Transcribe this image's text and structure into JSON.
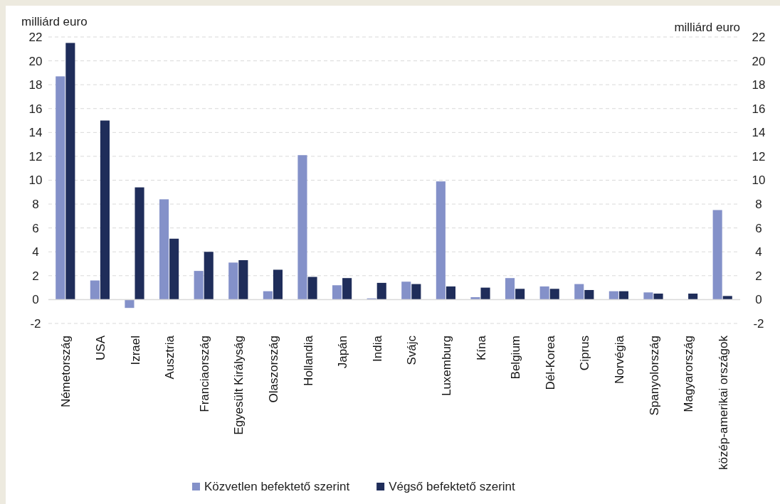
{
  "chart_data": {
    "type": "bar",
    "ylabel": "milliárd euro",
    "y2label": "milliárd euro",
    "categories": [
      "Németország",
      "USA",
      "Izrael",
      "Ausztria",
      "Franciaország",
      "Egyesült Királyság",
      "Olaszország",
      "Hollandia",
      "Japán",
      "India",
      "Svájc",
      "Luxemburg",
      "Kína",
      "Belgium",
      "Dél-Korea",
      "Ciprus",
      "Norvégia",
      "Spanyolország",
      "Magyarország",
      "közép-amerikai országok"
    ],
    "series": [
      {
        "name": "Közvetlen befektető szerint",
        "color": "#8491c9",
        "values": [
          18.7,
          1.6,
          -0.7,
          8.4,
          2.4,
          3.1,
          0.7,
          12.1,
          1.2,
          0.1,
          1.5,
          9.9,
          0.2,
          1.8,
          1.1,
          1.3,
          0.7,
          0.6,
          null,
          7.5
        ]
      },
      {
        "name": "Végső befektető szerint",
        "color": "#1f2d5a",
        "values": [
          21.5,
          15.0,
          9.4,
          5.1,
          4.0,
          3.3,
          2.5,
          1.9,
          1.8,
          1.4,
          1.3,
          1.1,
          1.0,
          0.9,
          0.9,
          0.8,
          0.7,
          0.5,
          0.5,
          0.3
        ]
      }
    ],
    "ylim": [
      -2,
      22
    ],
    "yticks": [
      -2,
      0,
      2,
      4,
      6,
      8,
      10,
      12,
      14,
      16,
      18,
      20,
      22
    ],
    "y2lim": [
      -2,
      22
    ],
    "y2ticks": [
      -2,
      0,
      2,
      4,
      6,
      8,
      10,
      12,
      14,
      16,
      18,
      20,
      22
    ],
    "grid": "y",
    "legend": "bottom"
  }
}
